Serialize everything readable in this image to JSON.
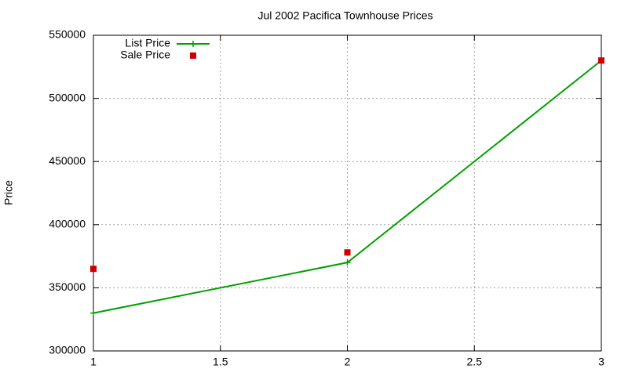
{
  "chart_data": {
    "type": "line",
    "title": "Jul 2002 Pacifica Townhouse Prices",
    "y_label": "Price",
    "x": [
      1,
      2,
      3
    ],
    "series": [
      {
        "name": "List Price",
        "color": "#00a000",
        "marker": "plus",
        "line": true,
        "values": [
          330000,
          370000,
          530000
        ]
      },
      {
        "name": "Sale Price",
        "color": "#cc0000",
        "marker": "square",
        "line": false,
        "values": [
          365000,
          378000,
          530000
        ]
      }
    ],
    "xlim": [
      1,
      3
    ],
    "xticks": [
      1,
      1.5,
      2,
      2.5,
      3
    ],
    "ylim": [
      300000,
      550000
    ],
    "yticks": [
      300000,
      350000,
      400000,
      450000,
      500000,
      550000
    ],
    "grid": true,
    "legend": "top-left"
  }
}
